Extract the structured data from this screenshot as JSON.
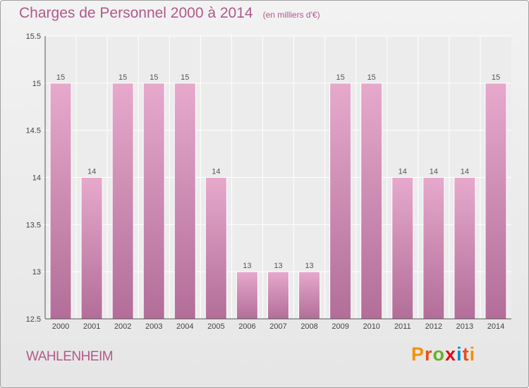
{
  "header": {
    "title": "Charges de Personnel 2000 à 2014",
    "subtitle": "(en milliers d'€)"
  },
  "commune": "WAHLENHEIM",
  "brand": {
    "letters": [
      "P",
      "r",
      "o",
      "x",
      "i",
      "t",
      "i"
    ],
    "colors": [
      "#f39200",
      "#e84e1b",
      "#6ab023",
      "#e30613",
      "#0b8fd0",
      "#e84e1b",
      "#f39200"
    ]
  },
  "colors": {
    "bar_top": "#e6a9cc",
    "bar_bottom": "#b26e98",
    "text_accent": "#b05a8a"
  },
  "chart_data": {
    "type": "bar",
    "title": "Charges de Personnel 2000 à 2014",
    "subtitle": "(en milliers d'€)",
    "categories": [
      "2000",
      "2001",
      "2002",
      "2003",
      "2004",
      "2005",
      "2006",
      "2007",
      "2008",
      "2009",
      "2010",
      "2011",
      "2012",
      "2013",
      "2014"
    ],
    "values": [
      15,
      14,
      15,
      15,
      15,
      14,
      13,
      13,
      13,
      15,
      15,
      14,
      14,
      14,
      15
    ],
    "data_labels": [
      "15",
      "14",
      "15",
      "15",
      "15",
      "14",
      "13",
      "13",
      "13",
      "15",
      "15",
      "14",
      "14",
      "14",
      "15"
    ],
    "ylim": [
      12.5,
      15.5
    ],
    "yticks": [
      12.5,
      13,
      13.5,
      14,
      14.5,
      15,
      15.5
    ],
    "ytick_labels": [
      "12.5",
      "13",
      "13.5",
      "14",
      "14.5",
      "15",
      "15.5"
    ],
    "grid": true,
    "legend": "none"
  }
}
